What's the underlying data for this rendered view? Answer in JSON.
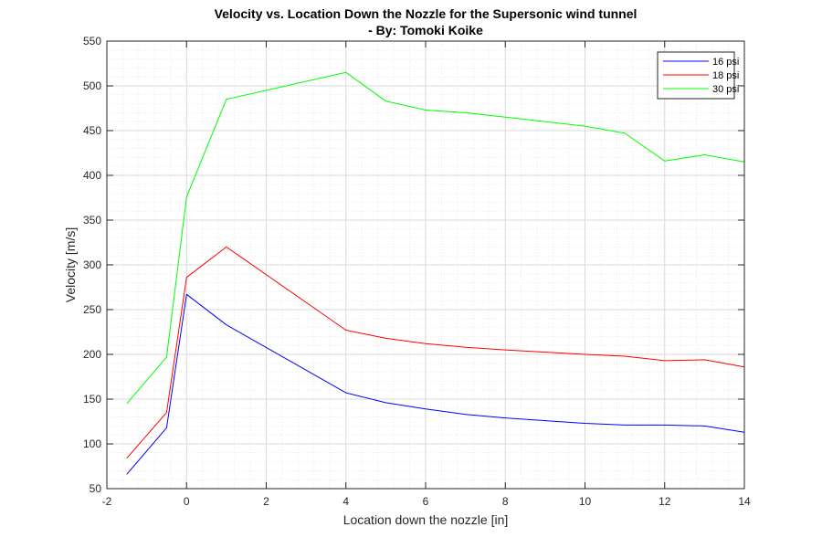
{
  "chart_data": {
    "type": "line",
    "title": "Velocity vs. Location Down the Nozzle for the Supersonic wind tunnel",
    "subtitle": "- By: Tomoki Koike",
    "xlabel": "Location down the nozzle [in]",
    "ylabel": "Velocity [m/s]",
    "xlim": [
      -2,
      14
    ],
    "ylim": [
      50,
      550
    ],
    "xticks": [
      "-2",
      "0",
      "2",
      "4",
      "6",
      "8",
      "10",
      "12",
      "14"
    ],
    "yticks": [
      "50",
      "100",
      "150",
      "200",
      "250",
      "300",
      "350",
      "400",
      "450",
      "500",
      "550"
    ],
    "grid": true,
    "minor_grid": true,
    "legend_position": "top-right",
    "x": [
      -1.5,
      -0.5,
      0,
      1,
      4,
      5,
      6,
      7,
      8,
      10,
      11,
      12,
      13,
      14
    ],
    "series": [
      {
        "name": "16 psi",
        "color": "#0000ff",
        "values": [
          66,
          118,
          267,
          233,
          157,
          146,
          139,
          133,
          129,
          123,
          121,
          121,
          120,
          113
        ]
      },
      {
        "name": "18 psi",
        "color": "#ff0000",
        "values": [
          84,
          135,
          286,
          320,
          227,
          218,
          212,
          208,
          205,
          200,
          198,
          193,
          194,
          186
        ]
      },
      {
        "name": "30 psi",
        "color": "#00ff00",
        "values": [
          145,
          197,
          376,
          485,
          515,
          483,
          473,
          470,
          465,
          455,
          447,
          416,
          423,
          415
        ]
      }
    ]
  }
}
